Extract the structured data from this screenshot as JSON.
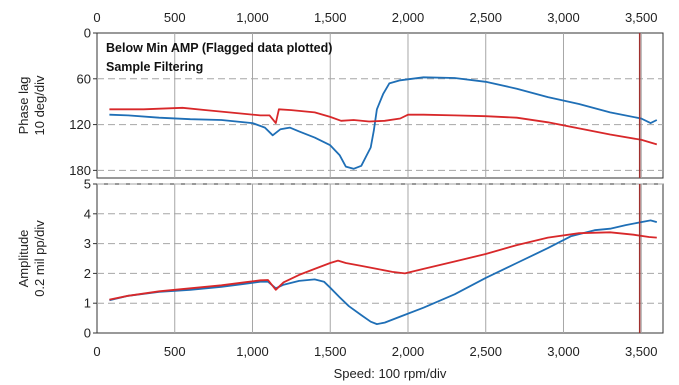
{
  "chart_data": {
    "type": "line",
    "x_ticks": [
      0,
      500,
      1000,
      1500,
      2000,
      2500,
      3000,
      3500
    ],
    "x_tick_labels": [
      "0",
      "500",
      "1,000",
      "1,500",
      "2,000",
      "2,500",
      "3,000",
      "3,500"
    ],
    "xlim": [
      0,
      3640
    ],
    "xlabel": "Speed: 100 rpm/div",
    "marker_x": 3490,
    "colors": {
      "blue": "#1f6fb6",
      "red": "#d8282a",
      "marker": "#a0302e",
      "grid": "#a6a6a6"
    },
    "annotation_lines": [
      "Below Min AMP (Flagged data plotted)",
      "Sample Filtering"
    ],
    "panels": [
      {
        "id": "phase",
        "ylabel_lines": [
          "Phase lag",
          "10 deg/div"
        ],
        "y_ticks": [
          0,
          60,
          120,
          180
        ],
        "y_tick_labels": [
          "0",
          "60",
          "120",
          "180"
        ],
        "ylim": [
          0,
          190
        ],
        "inverted": true,
        "series": [
          {
            "color": "blue",
            "points": [
              [
                80,
                107
              ],
              [
                200,
                108
              ],
              [
                400,
                111
              ],
              [
                600,
                113
              ],
              [
                800,
                114
              ],
              [
                1000,
                118
              ],
              [
                1080,
                124
              ],
              [
                1130,
                134
              ],
              [
                1180,
                126
              ],
              [
                1240,
                124
              ],
              [
                1300,
                129
              ],
              [
                1400,
                137
              ],
              [
                1500,
                147
              ],
              [
                1560,
                160
              ],
              [
                1600,
                175
              ],
              [
                1650,
                178
              ],
              [
                1700,
                174
              ],
              [
                1730,
                162
              ],
              [
                1760,
                150
              ],
              [
                1780,
                128
              ],
              [
                1800,
                100
              ],
              [
                1840,
                80
              ],
              [
                1880,
                66
              ],
              [
                1950,
                62
              ],
              [
                2100,
                58
              ],
              [
                2300,
                59
              ],
              [
                2500,
                64
              ],
              [
                2700,
                73
              ],
              [
                2900,
                84
              ],
              [
                3100,
                93
              ],
              [
                3300,
                104
              ],
              [
                3500,
                112
              ],
              [
                3560,
                118
              ],
              [
                3600,
                114
              ]
            ]
          },
          {
            "color": "red",
            "points": [
              [
                80,
                100
              ],
              [
                300,
                100
              ],
              [
                550,
                98
              ],
              [
                700,
                101
              ],
              [
                900,
                105
              ],
              [
                1050,
                108
              ],
              [
                1110,
                108
              ],
              [
                1150,
                118
              ],
              [
                1170,
                100
              ],
              [
                1250,
                101
              ],
              [
                1400,
                104
              ],
              [
                1500,
                110
              ],
              [
                1570,
                115
              ],
              [
                1650,
                114
              ],
              [
                1750,
                116
              ],
              [
                1850,
                115
              ],
              [
                1950,
                112
              ],
              [
                2000,
                107
              ],
              [
                2100,
                107
              ],
              [
                2300,
                108
              ],
              [
                2500,
                109
              ],
              [
                2700,
                111
              ],
              [
                2900,
                117
              ],
              [
                3100,
                125
              ],
              [
                3300,
                133
              ],
              [
                3500,
                140
              ],
              [
                3600,
                146
              ]
            ]
          }
        ]
      },
      {
        "id": "amplitude",
        "ylabel_lines": [
          "Amplitude",
          "0.2 mil  pp/div"
        ],
        "y_ticks": [
          0,
          1,
          2,
          3,
          4,
          5
        ],
        "y_tick_labels": [
          "0",
          "1",
          "2",
          "3",
          "4",
          "5"
        ],
        "ylim": [
          0,
          5
        ],
        "inverted": false,
        "series": [
          {
            "color": "blue",
            "points": [
              [
                80,
                1.1
              ],
              [
                200,
                1.25
              ],
              [
                400,
                1.38
              ],
              [
                600,
                1.45
              ],
              [
                800,
                1.55
              ],
              [
                950,
                1.65
              ],
              [
                1050,
                1.72
              ],
              [
                1100,
                1.72
              ],
              [
                1150,
                1.5
              ],
              [
                1200,
                1.62
              ],
              [
                1300,
                1.75
              ],
              [
                1400,
                1.8
              ],
              [
                1460,
                1.72
              ],
              [
                1500,
                1.52
              ],
              [
                1560,
                1.2
              ],
              [
                1620,
                0.9
              ],
              [
                1700,
                0.6
              ],
              [
                1760,
                0.38
              ],
              [
                1800,
                0.3
              ],
              [
                1850,
                0.35
              ],
              [
                1950,
                0.55
              ],
              [
                2100,
                0.85
              ],
              [
                2300,
                1.3
              ],
              [
                2500,
                1.85
              ],
              [
                2700,
                2.35
              ],
              [
                2900,
                2.85
              ],
              [
                3050,
                3.25
              ],
              [
                3200,
                3.45
              ],
              [
                3300,
                3.5
              ],
              [
                3400,
                3.62
              ],
              [
                3500,
                3.72
              ],
              [
                3560,
                3.78
              ],
              [
                3600,
                3.72
              ]
            ]
          },
          {
            "color": "red",
            "points": [
              [
                80,
                1.12
              ],
              [
                200,
                1.25
              ],
              [
                400,
                1.4
              ],
              [
                600,
                1.5
              ],
              [
                800,
                1.6
              ],
              [
                950,
                1.7
              ],
              [
                1050,
                1.77
              ],
              [
                1100,
                1.78
              ],
              [
                1150,
                1.45
              ],
              [
                1200,
                1.7
              ],
              [
                1300,
                1.95
              ],
              [
                1400,
                2.15
              ],
              [
                1500,
                2.35
              ],
              [
                1550,
                2.43
              ],
              [
                1600,
                2.35
              ],
              [
                1700,
                2.25
              ],
              [
                1800,
                2.15
              ],
              [
                1900,
                2.05
              ],
              [
                1980,
                2.0
              ],
              [
                2100,
                2.15
              ],
              [
                2300,
                2.4
              ],
              [
                2500,
                2.65
              ],
              [
                2700,
                2.95
              ],
              [
                2900,
                3.2
              ],
              [
                3100,
                3.35
              ],
              [
                3300,
                3.38
              ],
              [
                3450,
                3.3
              ],
              [
                3550,
                3.22
              ],
              [
                3600,
                3.2
              ]
            ]
          }
        ]
      }
    ]
  }
}
